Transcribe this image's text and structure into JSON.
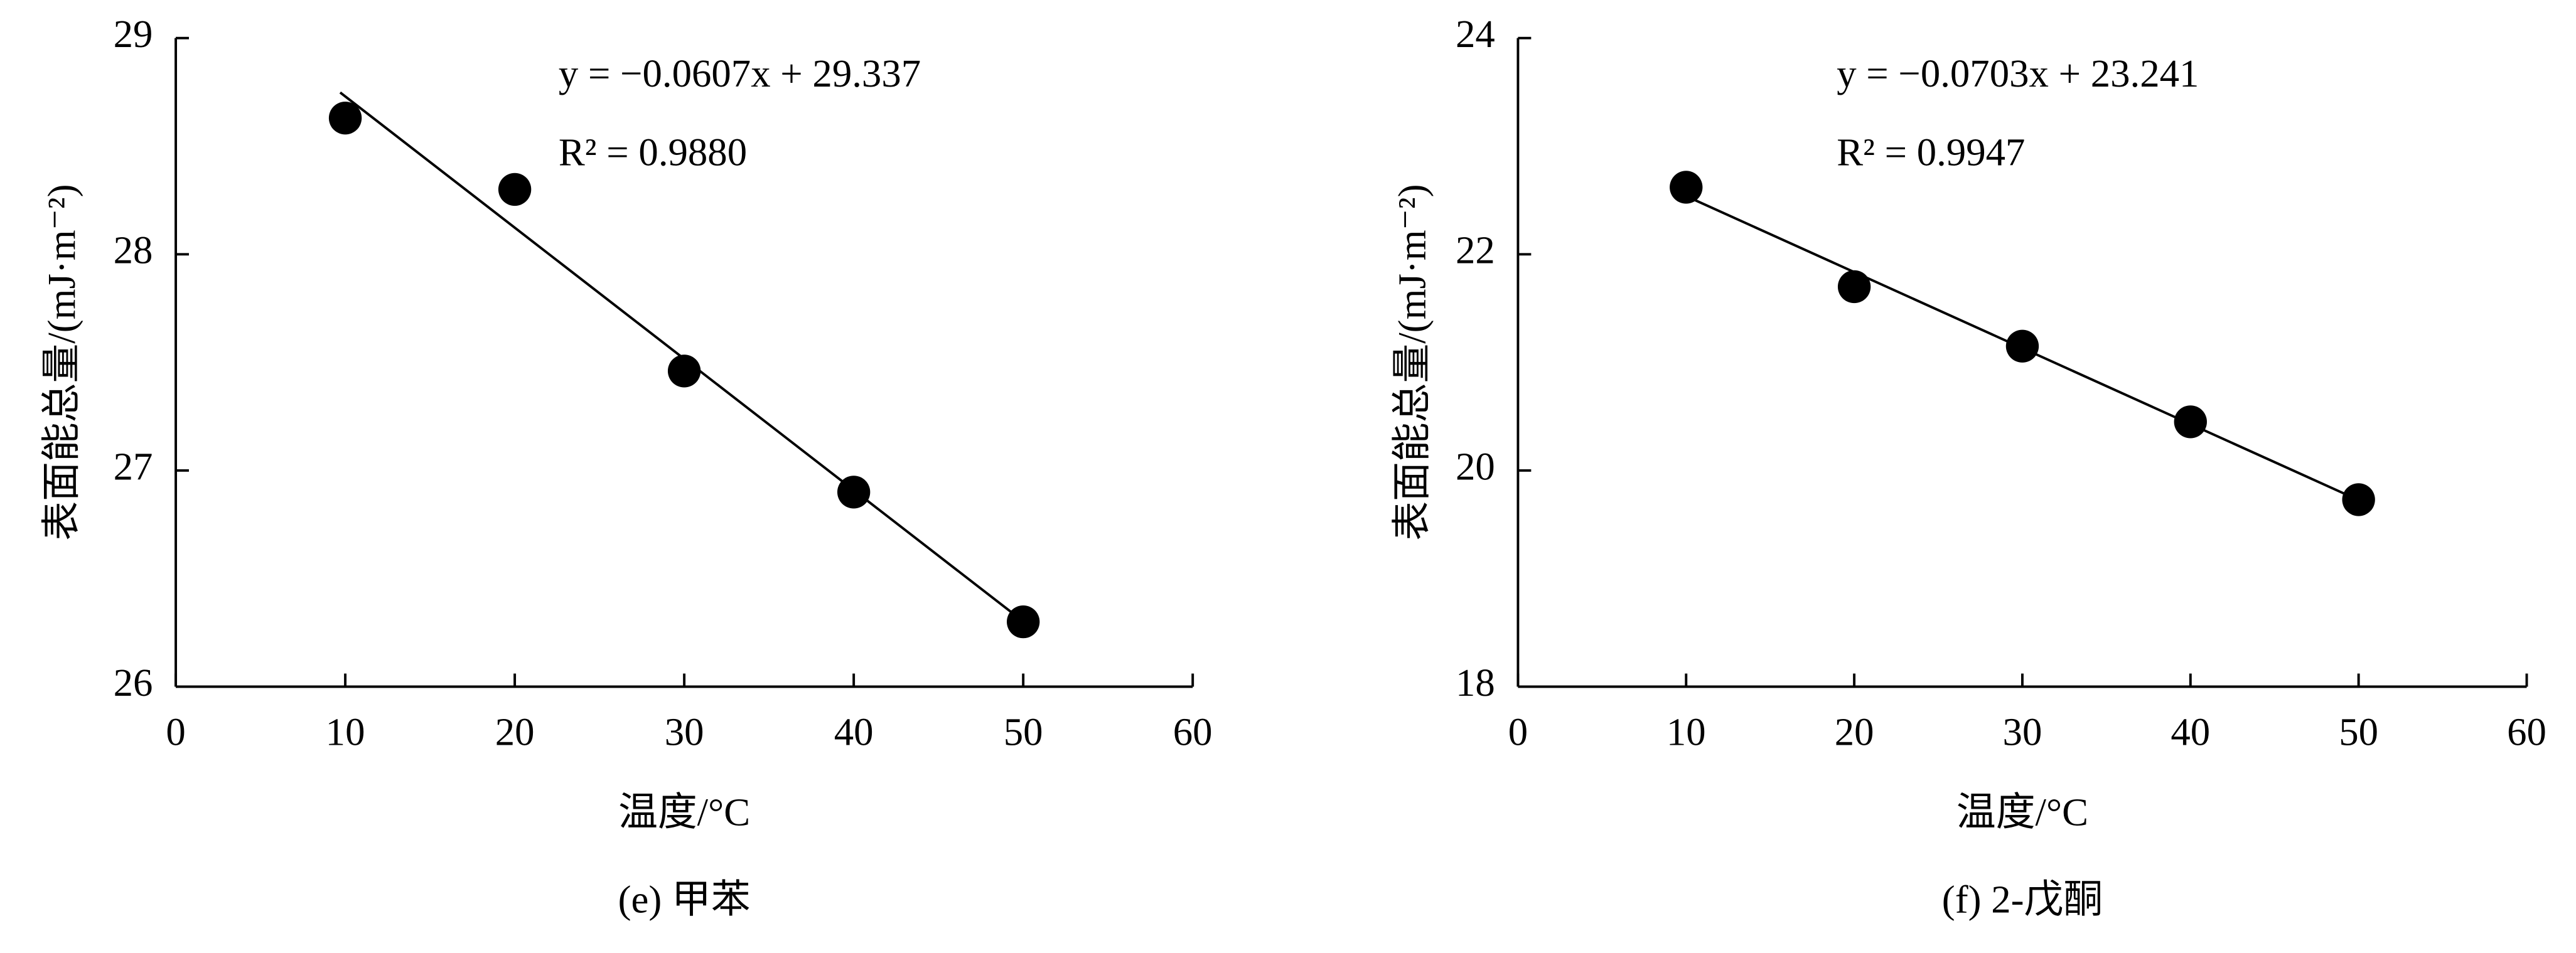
{
  "chart_data": [
    {
      "type": "scatter",
      "title": "(e) 甲苯",
      "x_label": "温度/°C",
      "y_label": "表面能总量/(mJ·m⁻²)",
      "x": [
        10,
        20,
        30,
        40,
        50
      ],
      "values": [
        28.63,
        28.3,
        27.46,
        26.9,
        26.3
      ],
      "color": "#000000",
      "xlim": [
        0,
        60
      ],
      "xticks": [
        0,
        10,
        20,
        30,
        40,
        50,
        60
      ],
      "ylim": [
        26,
        29
      ],
      "yticks": [
        26,
        27,
        28,
        29
      ],
      "trendline": {
        "slope": -0.0607,
        "intercept": 29.337,
        "label": "y = −0.0607x + 29.337"
      },
      "r2_label": "R² = 0.9880"
    },
    {
      "type": "scatter",
      "title": "(f) 2-戊酮",
      "x_label": "温度/°C",
      "y_label": "表面能总量/(mJ·m⁻²)",
      "x": [
        10,
        20,
        30,
        40,
        50
      ],
      "values": [
        22.62,
        21.7,
        21.15,
        20.45,
        19.73
      ],
      "color": "#000000",
      "xlim": [
        0,
        60
      ],
      "xticks": [
        0,
        10,
        20,
        30,
        40,
        50,
        60
      ],
      "ylim": [
        18,
        24
      ],
      "yticks": [
        18,
        20,
        22,
        24
      ],
      "trendline": {
        "slope": -0.0703,
        "intercept": 23.241,
        "label": "y = −0.0703x + 23.241"
      },
      "r2_label": "R² = 0.9947"
    }
  ]
}
